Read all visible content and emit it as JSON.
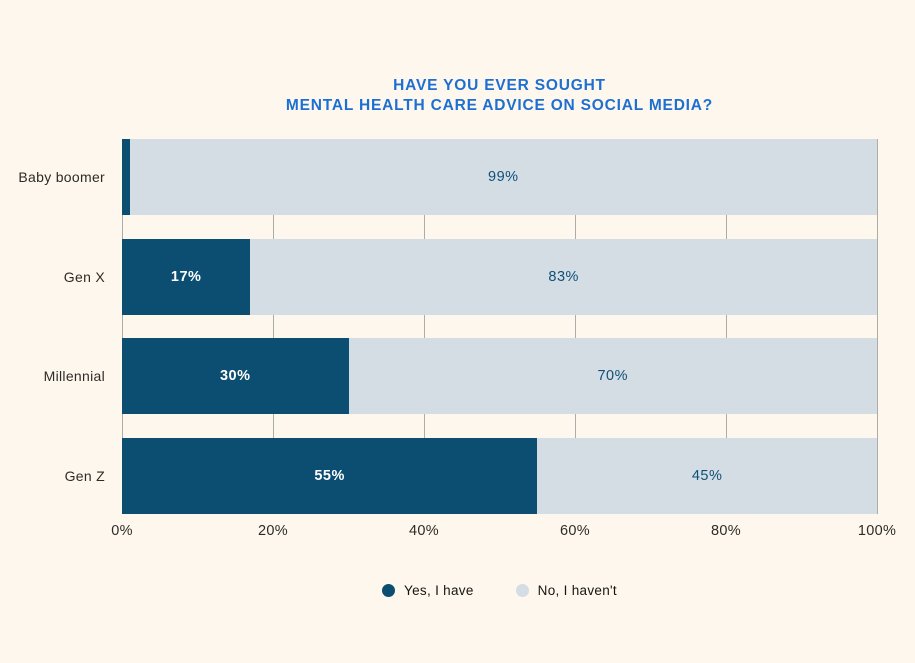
{
  "title": {
    "line1": "HAVE YOU EVER SOUGHT",
    "line2": "MENTAL HEALTH CARE ADVICE ON SOCIAL MEDIA?"
  },
  "chart_data": {
    "type": "bar",
    "orientation": "horizontal",
    "stacked": true,
    "title": "HAVE YOU EVER SOUGHT MENTAL HEALTH CARE ADVICE ON SOCIAL MEDIA?",
    "categories": [
      "Baby boomer",
      "Gen X",
      "Millennial",
      "Gen Z"
    ],
    "series": [
      {
        "name": "Yes, I have",
        "color": "#0c4d72",
        "values": [
          1,
          17,
          30,
          55
        ],
        "labels": [
          "",
          "17%",
          "30%",
          "55%"
        ]
      },
      {
        "name": "No, I haven't",
        "color": "#d3dde3",
        "values": [
          99,
          83,
          70,
          45
        ],
        "labels": [
          "99%",
          "83%",
          "70%",
          "45%"
        ]
      }
    ],
    "x_ticks": [
      {
        "value": 0,
        "label": "0%"
      },
      {
        "value": 20,
        "label": "20%"
      },
      {
        "value": 40,
        "label": "40%"
      },
      {
        "value": 60,
        "label": "60%"
      },
      {
        "value": 80,
        "label": "80%"
      },
      {
        "value": 100,
        "label": "100%"
      }
    ],
    "xlim": [
      0,
      100
    ],
    "grid": "vertical",
    "legend_position": "bottom"
  },
  "colors": {
    "background": "#fdf7ee",
    "title_text": "#1d6fd1",
    "bar_yes": "#0c4d72",
    "bar_no": "#d3dde3",
    "label_on_dark": "#ffffff",
    "label_on_light": "#0f507b",
    "axis_text": "#2e2b27",
    "gridline": "#aeaca7",
    "legend_text": "#171512"
  }
}
